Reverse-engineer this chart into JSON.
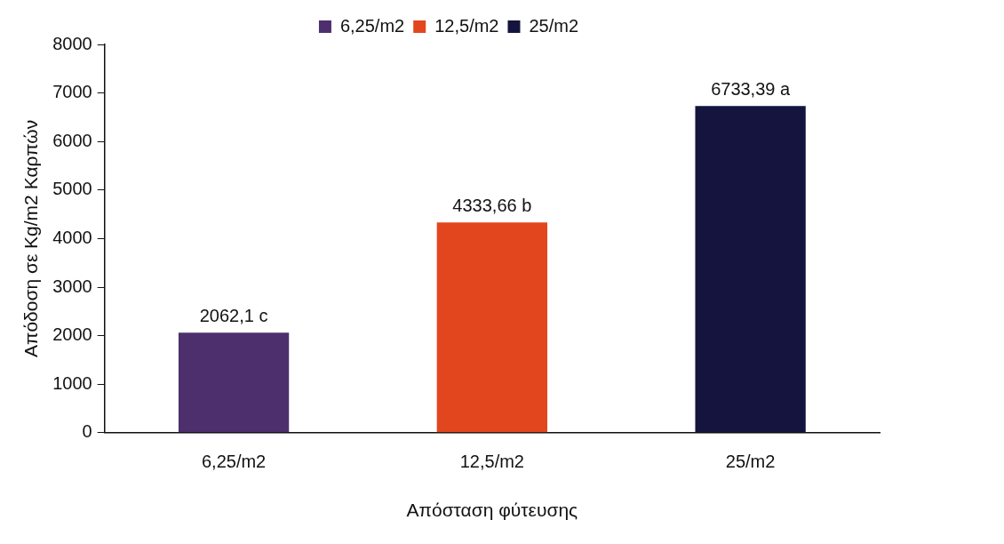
{
  "chart_data": {
    "type": "bar",
    "xlabel": "Απόσταση φύτευσης",
    "ylabel": "Απόδοση σε Kg/m2 Καρπών",
    "categories": [
      "6,25/m2",
      "12,5/m2",
      "25/m2"
    ],
    "series": [
      {
        "name": "6,25/m2",
        "color": "#4e2f6e",
        "values": [
          2062.1,
          null,
          null
        ],
        "value_labels": [
          "2062,1 c",
          null,
          null
        ]
      },
      {
        "name": "12,5/m2",
        "color": "#e2461e",
        "values": [
          null,
          4333.66,
          null
        ],
        "value_labels": [
          null,
          "4333,66 b",
          null
        ]
      },
      {
        "name": "25/m2",
        "color": "#15143f",
        "values": [
          null,
          null,
          6733.39
        ],
        "value_labels": [
          null,
          null,
          "6733,39 a"
        ]
      }
    ],
    "ylim": [
      0,
      8000
    ],
    "yticks": [
      0,
      1000,
      2000,
      3000,
      4000,
      5000,
      6000,
      7000,
      8000
    ],
    "grid": false,
    "legend": "top"
  }
}
